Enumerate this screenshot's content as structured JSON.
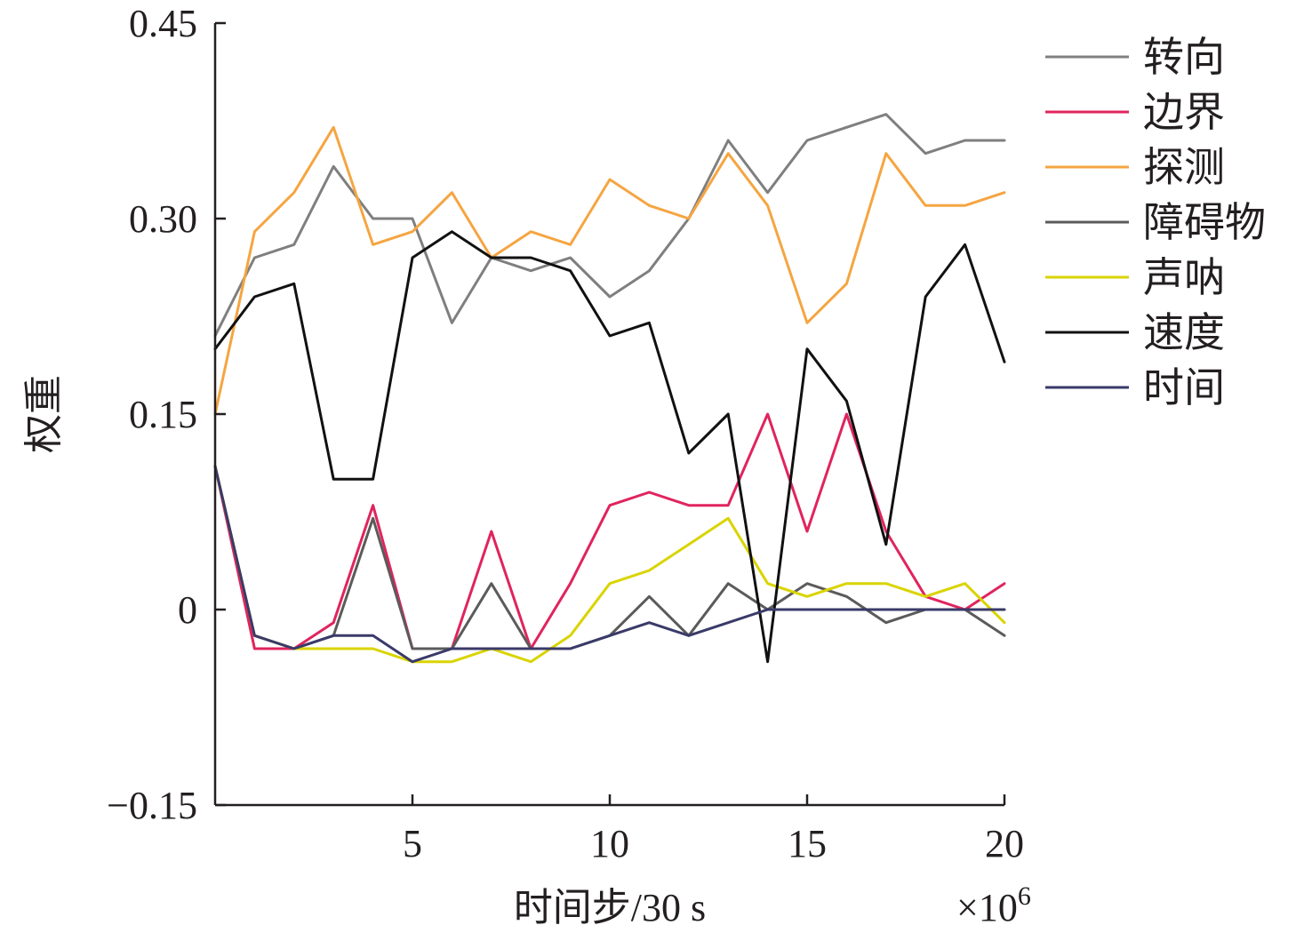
{
  "chart_data": {
    "type": "line",
    "xlabel": "时间步/30 s",
    "x_multiplier": "×10",
    "x_multiplier_exponent": "6",
    "ylabel": "权重",
    "xlim": [
      0,
      20
    ],
    "ylim": [
      -0.15,
      0.45
    ],
    "x_ticks": [
      5,
      10,
      15,
      20
    ],
    "x_tick_labels": [
      "5",
      "10",
      "15",
      "20"
    ],
    "y_ticks": [
      -0.15,
      0,
      0.15,
      0.3,
      0.45
    ],
    "y_tick_labels": [
      "−0.15",
      "0",
      "0.15",
      "0.30",
      "0.45"
    ],
    "grid": false,
    "legend_position": "right",
    "x": [
      0,
      1,
      2,
      3,
      4,
      5,
      6,
      7,
      8,
      9,
      10,
      11,
      12,
      13,
      14,
      15,
      16,
      17,
      18,
      19,
      20
    ],
    "series": [
      {
        "name": "转向",
        "color": "#7f7f7f",
        "values": [
          0.21,
          0.27,
          0.28,
          0.34,
          0.3,
          0.3,
          0.22,
          0.27,
          0.26,
          0.27,
          0.24,
          0.26,
          0.3,
          0.36,
          0.32,
          0.36,
          0.37,
          0.38,
          0.35,
          0.36,
          0.36
        ]
      },
      {
        "name": "边界",
        "color": "#e0245e",
        "values": [
          0.11,
          -0.03,
          -0.03,
          -0.01,
          0.08,
          -0.03,
          -0.03,
          0.06,
          -0.03,
          0.02,
          0.08,
          0.09,
          0.08,
          0.08,
          0.15,
          0.06,
          0.15,
          0.06,
          0.01,
          0.0,
          0.02
        ]
      },
      {
        "name": "探测",
        "color": "#f5a542",
        "values": [
          0.15,
          0.29,
          0.32,
          0.37,
          0.28,
          0.29,
          0.32,
          0.27,
          0.29,
          0.28,
          0.33,
          0.31,
          0.3,
          0.35,
          0.31,
          0.22,
          0.25,
          0.35,
          0.31,
          0.31,
          0.32
        ]
      },
      {
        "name": "障碍物",
        "color": "#5b5b5b",
        "values": [
          0.11,
          -0.02,
          -0.03,
          -0.02,
          0.07,
          -0.03,
          -0.03,
          0.02,
          -0.03,
          -0.03,
          -0.02,
          0.01,
          -0.02,
          0.02,
          0.0,
          0.02,
          0.01,
          -0.01,
          0.0,
          0.0,
          -0.02
        ]
      },
      {
        "name": "声呐",
        "color": "#d9d400",
        "values": [
          0.11,
          -0.02,
          -0.03,
          -0.03,
          -0.03,
          -0.04,
          -0.04,
          -0.03,
          -0.04,
          -0.02,
          0.02,
          0.03,
          0.05,
          0.07,
          0.02,
          0.01,
          0.02,
          0.02,
          0.01,
          0.02,
          -0.01
        ]
      },
      {
        "name": "速度",
        "color": "#111111",
        "values": [
          0.2,
          0.24,
          0.25,
          0.1,
          0.1,
          0.27,
          0.29,
          0.27,
          0.27,
          0.26,
          0.21,
          0.22,
          0.12,
          0.15,
          -0.04,
          0.2,
          0.16,
          0.05,
          0.24,
          0.28,
          0.19
        ]
      },
      {
        "name": "时间",
        "color": "#3a3a6a",
        "values": [
          0.11,
          -0.02,
          -0.03,
          -0.02,
          -0.02,
          -0.04,
          -0.03,
          -0.03,
          -0.03,
          -0.03,
          -0.02,
          -0.01,
          -0.02,
          -0.01,
          0.0,
          0.0,
          0.0,
          0.0,
          0.0,
          0.0,
          0.0
        ]
      }
    ]
  }
}
